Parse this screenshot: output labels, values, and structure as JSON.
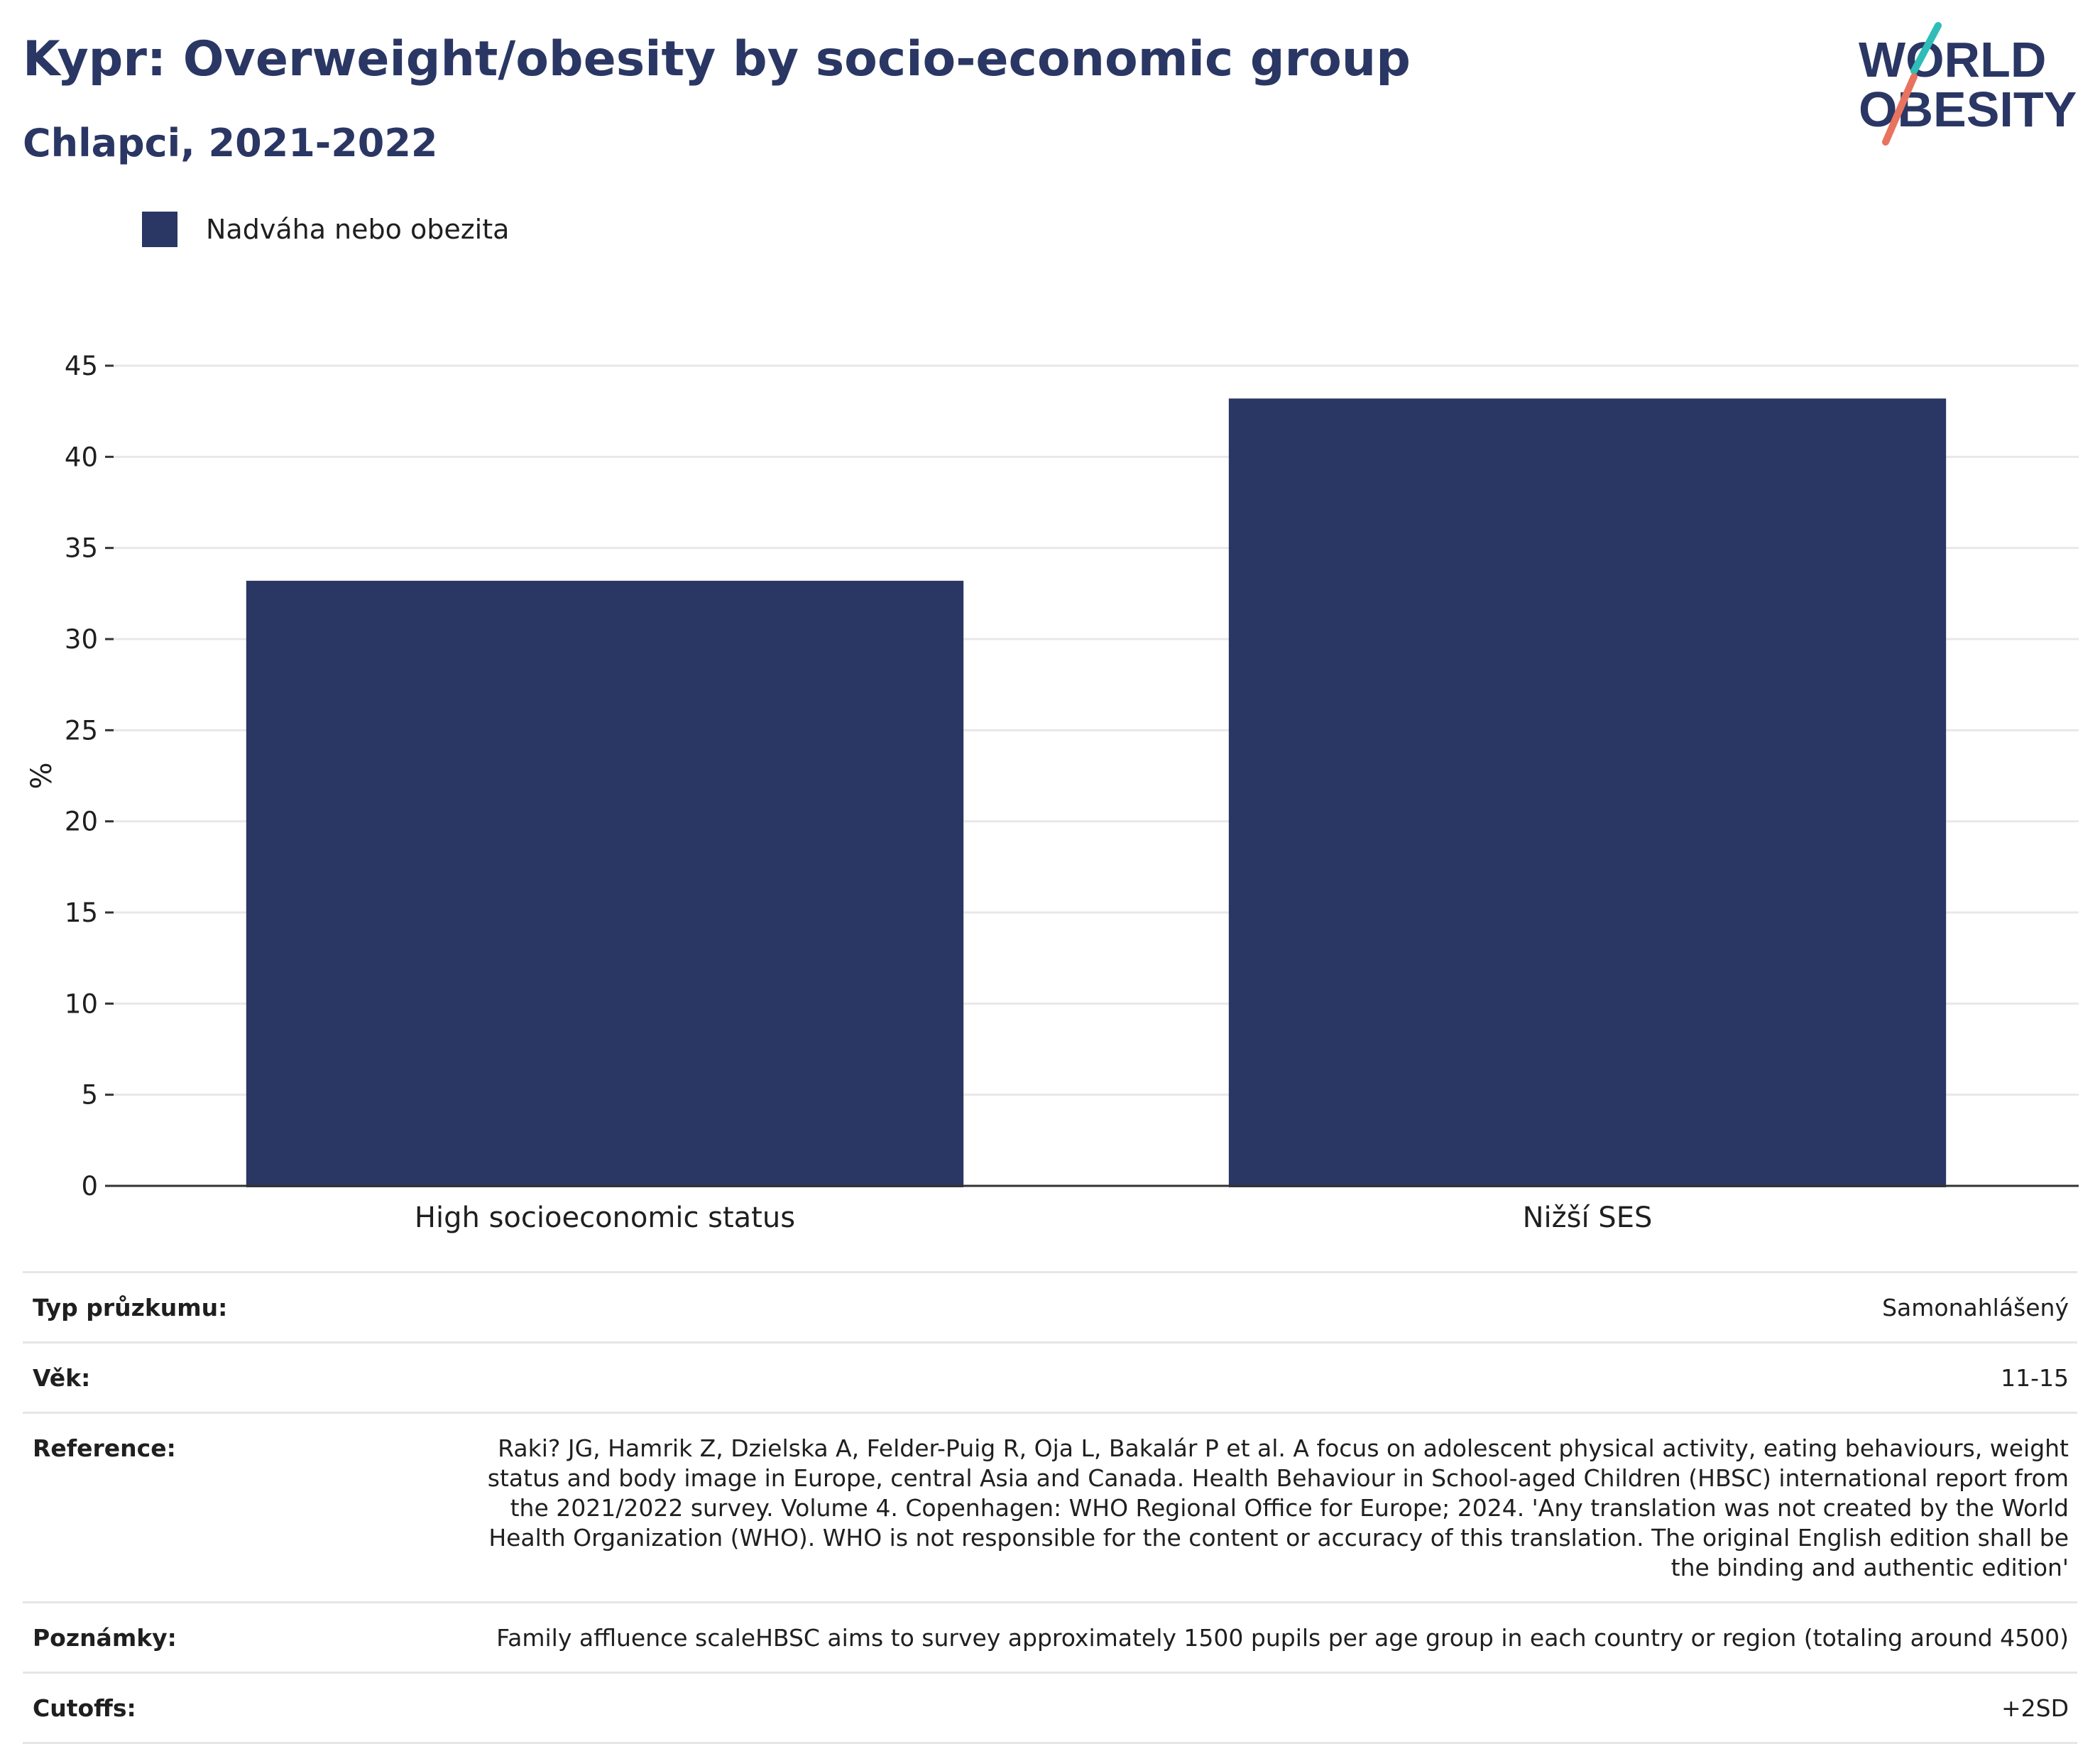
{
  "header": {
    "title": "Kypr: Overweight/obesity by socio-economic group",
    "subtitle": "Chlapci, 2021-2022"
  },
  "logo": {
    "line1": "WORLD",
    "line2": "OBESITY",
    "colors": {
      "teal": "#2ebdb8",
      "coral": "#e8735f"
    }
  },
  "legend": {
    "label": "Nadváha nebo obezita"
  },
  "chart_data": {
    "type": "bar",
    "categories": [
      "High socioeconomic status",
      "Nižší SES"
    ],
    "series": [
      {
        "name": "Nadváha nebo obezita",
        "values": [
          33.2,
          43.2
        ],
        "color": "#2a3663"
      }
    ],
    "ylabel": "%",
    "ylim": [
      0,
      45
    ],
    "yticks": [
      0,
      5,
      10,
      15,
      20,
      25,
      30,
      35,
      40,
      45
    ],
    "grid": true,
    "legend_position": "top-left"
  },
  "info": [
    {
      "key": "Typ průzkumu:",
      "value": "Samonahlášený"
    },
    {
      "key": "Věk:",
      "value": "11-15"
    },
    {
      "key": "Reference:",
      "value": "Raki? JG, Hamrik Z, Dzielska A, Felder-Puig R, Oja L, Bakalár P et al. A focus on adolescent physical activity, eating behaviours, weight status and body image in Europe, central Asia and Canada. Health Behaviour in School-aged Children (HBSC) international report from the 2021/2022 survey. Volume 4. Copenhagen: WHO Regional Office for Europe; 2024. 'Any translation was not created by the World Health Organization (WHO). WHO is not responsible for the content or accuracy of this translation. The original English edition shall be the binding and authentic edition'"
    },
    {
      "key": "Poznámky:",
      "value": "Family affluence scaleHBSC aims to survey approximately 1500 pupils per age group in each country or region (totaling around 4500)"
    },
    {
      "key": "Cutoffs:",
      "value": "+2SD"
    }
  ]
}
